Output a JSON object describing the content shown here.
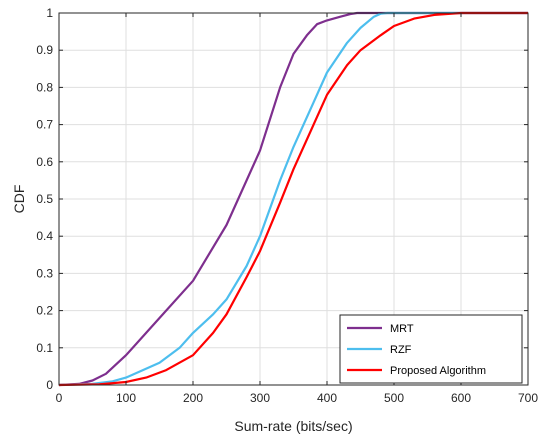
{
  "chart_data": {
    "type": "line",
    "xlabel": "Sum-rate (bits/sec)",
    "ylabel": "CDF",
    "xlim": [
      0,
      700
    ],
    "ylim": [
      0,
      1
    ],
    "x_ticks": [
      "0",
      "100",
      "200",
      "300",
      "400",
      "500",
      "600",
      "700"
    ],
    "y_ticks": [
      "0",
      "0.1",
      "0.2",
      "0.3",
      "0.4",
      "0.5",
      "0.6",
      "0.7",
      "0.8",
      "0.9",
      "1"
    ],
    "grid": true,
    "legend_position": "bottom-right",
    "series": [
      {
        "name": "MRT",
        "color": "#7e2f8e",
        "points": [
          [
            0,
            0
          ],
          [
            30,
            0.003
          ],
          [
            50,
            0.012
          ],
          [
            70,
            0.03
          ],
          [
            100,
            0.08
          ],
          [
            150,
            0.18
          ],
          [
            200,
            0.28
          ],
          [
            250,
            0.43
          ],
          [
            300,
            0.63
          ],
          [
            330,
            0.8
          ],
          [
            350,
            0.89
          ],
          [
            370,
            0.94
          ],
          [
            385,
            0.97
          ],
          [
            400,
            0.98
          ],
          [
            420,
            0.99
          ],
          [
            435,
            0.997
          ],
          [
            445,
            1
          ],
          [
            700,
            1
          ]
        ]
      },
      {
        "name": "RZF",
        "color": "#4dbeee",
        "points": [
          [
            0,
            0
          ],
          [
            50,
            0.003
          ],
          [
            80,
            0.01
          ],
          [
            100,
            0.02
          ],
          [
            150,
            0.06
          ],
          [
            180,
            0.1
          ],
          [
            200,
            0.14
          ],
          [
            230,
            0.19
          ],
          [
            250,
            0.23
          ],
          [
            280,
            0.32
          ],
          [
            300,
            0.4
          ],
          [
            330,
            0.55
          ],
          [
            350,
            0.64
          ],
          [
            380,
            0.76
          ],
          [
            400,
            0.84
          ],
          [
            430,
            0.92
          ],
          [
            450,
            0.96
          ],
          [
            470,
            0.99
          ],
          [
            480,
            0.998
          ],
          [
            490,
            1
          ],
          [
            700,
            1
          ]
        ]
      },
      {
        "name": "Proposed Algorithm",
        "color": "#ff0000",
        "points": [
          [
            0,
            0
          ],
          [
            60,
            0.002
          ],
          [
            100,
            0.008
          ],
          [
            130,
            0.02
          ],
          [
            160,
            0.04
          ],
          [
            200,
            0.08
          ],
          [
            230,
            0.14
          ],
          [
            250,
            0.19
          ],
          [
            280,
            0.29
          ],
          [
            300,
            0.36
          ],
          [
            330,
            0.49
          ],
          [
            350,
            0.58
          ],
          [
            380,
            0.7
          ],
          [
            400,
            0.78
          ],
          [
            430,
            0.86
          ],
          [
            450,
            0.9
          ],
          [
            480,
            0.94
          ],
          [
            500,
            0.965
          ],
          [
            530,
            0.985
          ],
          [
            560,
            0.995
          ],
          [
            600,
            1
          ],
          [
            700,
            1
          ]
        ]
      }
    ]
  }
}
